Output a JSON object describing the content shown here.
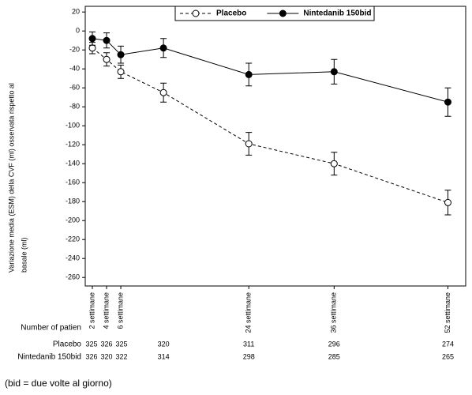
{
  "chart_data": {
    "type": "line",
    "y_label": [
      "Variazione media (ESM) della CVF (ml) osservata rispetto al",
      "basale (ml)"
    ],
    "x": [
      2,
      4,
      6,
      12,
      24,
      36,
      52
    ],
    "xlim": [
      1,
      54.5
    ],
    "xticks": [
      {
        "value": 2,
        "label": "2 settimane"
      },
      {
        "value": 4,
        "label": "4 settimane"
      },
      {
        "value": 6,
        "label": "6 settimane"
      },
      {
        "value": 24,
        "label": "24 settimane"
      },
      {
        "value": 36,
        "label": "36 settimane"
      },
      {
        "value": 52,
        "label": "52 settimane"
      }
    ],
    "ylim": [
      -269,
      26
    ],
    "yticks": [
      20,
      0,
      -20,
      -40,
      -60,
      -80,
      -100,
      -120,
      -140,
      -160,
      -180,
      -200,
      -220,
      -240,
      -260
    ],
    "legend": "top",
    "series": [
      {
        "name": "Placebo",
        "color": "#000000",
        "style": "dashed",
        "marker": "open",
        "values": [
          -18,
          -30,
          -43,
          -65,
          -119,
          -140,
          -181
        ],
        "errors": [
          6,
          7,
          7,
          10,
          12,
          12,
          13
        ]
      },
      {
        "name": "Nintedanib 150bid",
        "color": "#000000",
        "style": "solid",
        "marker": "filled",
        "values": [
          -8,
          -10,
          -25,
          -18,
          -46,
          -43,
          -75
        ],
        "errors": [
          7,
          8,
          9,
          10,
          12,
          13,
          15
        ]
      }
    ],
    "at_risk": {
      "label": "Number of patien",
      "rows": [
        {
          "name": "Placebo",
          "counts": [
            "325",
            "326",
            "325",
            "320",
            "311",
            "296",
            "274"
          ]
        },
        {
          "name": "Nintedanib 150bid",
          "counts": [
            "326",
            "320",
            "322",
            "314",
            "298",
            "285",
            "265"
          ]
        }
      ]
    }
  },
  "footnote": "(bid = due volte al giorno)"
}
